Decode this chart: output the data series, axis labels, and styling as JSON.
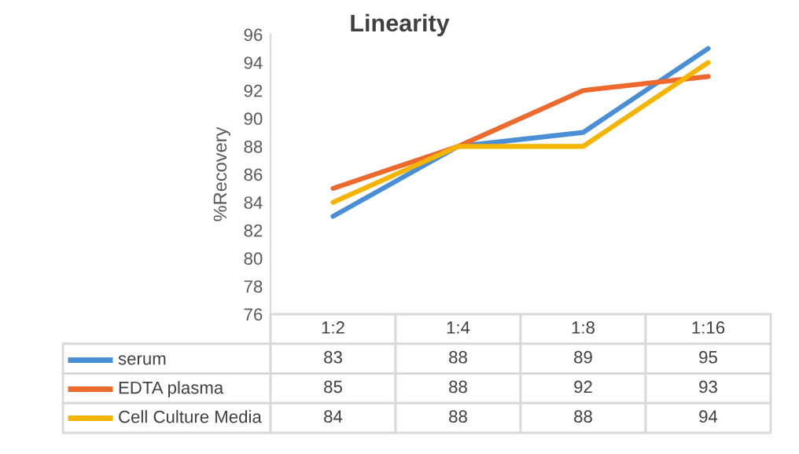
{
  "chart_data": {
    "type": "line",
    "title": "Linearity",
    "ylabel": "%Recovery",
    "categories": [
      "1:2",
      "1:4",
      "1:8",
      "1:16"
    ],
    "series": [
      {
        "name": "serum",
        "color": "#4a8fd6",
        "values": [
          83,
          88,
          89,
          95
        ]
      },
      {
        "name": "EDTA plasma",
        "color": "#ed6a2f",
        "values": [
          85,
          88,
          92,
          93
        ]
      },
      {
        "name": "Cell Culture Media",
        "color": "#f5b400",
        "values": [
          84,
          88,
          88,
          94
        ]
      }
    ],
    "ylim": [
      76,
      96
    ],
    "yticks": [
      76,
      78,
      80,
      82,
      84,
      86,
      88,
      90,
      92,
      94,
      96
    ],
    "grid": false,
    "legend": "bottom",
    "data_labels": true,
    "marker": "none",
    "line_style": "solid"
  }
}
